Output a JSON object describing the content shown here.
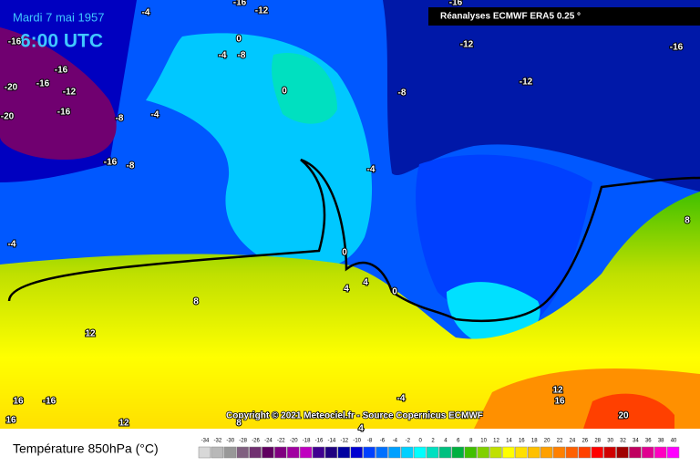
{
  "header": {
    "date": "Mardi 7 mai 1957",
    "time": "6:00 UTC",
    "source": "Réanalyses ECMWF ERA5 0.25 °"
  },
  "copyright": "Copyright © 2021 Meteociel.fr - Source Copernicus ECMWF",
  "legend": {
    "title": "Température 850hPa (°C)",
    "values": [
      -34,
      -32,
      -30,
      -28,
      -26,
      -24,
      -22,
      -20,
      -18,
      -16,
      -14,
      -12,
      -10,
      -8,
      -6,
      -4,
      -2,
      0,
      2,
      4,
      6,
      8,
      10,
      12,
      14,
      16,
      18,
      20,
      22,
      24,
      26,
      28,
      30,
      32,
      34,
      36,
      38,
      40
    ],
    "colors": [
      "#d8d8d8",
      "#b8b8b8",
      "#989898",
      "#806080",
      "#703070",
      "#600060",
      "#800080",
      "#a000a0",
      "#c000c0",
      "#400090",
      "#200080",
      "#0000a0",
      "#0000d0",
      "#0040ff",
      "#0070ff",
      "#00a0ff",
      "#00d0ff",
      "#00ffff",
      "#00e0c0",
      "#00c080",
      "#00b040",
      "#40c000",
      "#80d000",
      "#c0e000",
      "#ffff00",
      "#ffe000",
      "#ffc000",
      "#ffa000",
      "#ff8000",
      "#ff6000",
      "#ff4000",
      "#ff0000",
      "#d00000",
      "#a00000",
      "#c00060",
      "#e00090",
      "#ff00c0",
      "#ff00ff"
    ]
  },
  "contour_labels": [
    -4,
    -16,
    -12,
    -16,
    -12,
    -16,
    -16,
    0,
    -4,
    -8,
    -16,
    -12,
    -20,
    -16,
    -20,
    -16,
    -8,
    -4,
    0,
    -8,
    -12,
    -16,
    -8,
    -4,
    -4,
    0,
    4,
    4,
    0,
    8,
    8,
    12,
    16,
    -16,
    16,
    12,
    8,
    4,
    -4,
    12,
    16,
    20
  ]
}
